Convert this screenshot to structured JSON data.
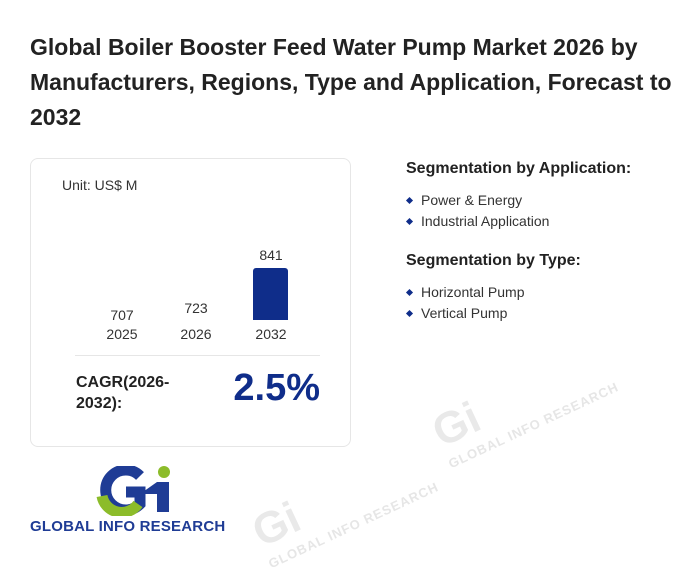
{
  "title": "Global Boiler Booster Feed Water Pump Market 2026 by Manufacturers, Regions, Type and Application, Forecast to 2032",
  "card": {
    "unit": "Unit: US$ M",
    "cagr_label": "CAGR(2026-2032):",
    "cagr_value": "2.5%"
  },
  "chart_data": {
    "type": "bar",
    "categories": [
      "2025",
      "2026",
      "2032"
    ],
    "values": [
      707,
      723,
      841
    ],
    "value_labels": [
      "707",
      "723",
      "841"
    ],
    "colors": [
      "#d6e8fd",
      "#d6e8fd",
      "#0f2d8a"
    ],
    "ylabel": "US$ M"
  },
  "segments": {
    "application": {
      "heading": "Segmentation by Application:",
      "items": [
        "Power & Energy",
        "Industrial Application"
      ]
    },
    "type": {
      "heading": "Segmentation by Type:",
      "items": [
        "Horizontal Pump",
        "Vertical Pump"
      ]
    }
  },
  "logo": {
    "text": "GLOBAL INFO RESEARCH",
    "mark": "Gi"
  },
  "watermark": "GLOBAL INFO RESEARCH"
}
